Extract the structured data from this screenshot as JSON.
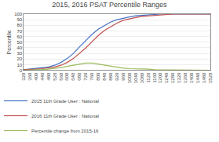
{
  "chart_data": {
    "type": "line",
    "title": "2015, 2016 PSAT Percentile Ranges",
    "y_label": "Percentile",
    "x": [
      320,
      360,
      400,
      440,
      480,
      520,
      560,
      600,
      640,
      680,
      720,
      760,
      800,
      840,
      880,
      920,
      960,
      1000,
      1040,
      1080,
      1120,
      1160,
      1200,
      1240,
      1280,
      1320,
      1360,
      1400,
      1440,
      1480,
      1520
    ],
    "series": [
      {
        "name": "2015 11th Grade User : National",
        "color": "#4472C4",
        "values": [
          1,
          2,
          3,
          4,
          6,
          9,
          14,
          21,
          30,
          42,
          53,
          64,
          73,
          80,
          86,
          90,
          93,
          95,
          97,
          98,
          99,
          99,
          100,
          100,
          100,
          100,
          100,
          100,
          100,
          100,
          100
        ]
      },
      {
        "name": "2016 11th Grade User : National",
        "color": "#C0504D",
        "values": [
          1,
          1,
          2,
          3,
          4,
          6,
          9,
          14,
          21,
          30,
          40,
          51,
          62,
          71,
          78,
          84,
          89,
          92,
          94,
          96,
          97,
          98,
          99,
          99,
          100,
          100,
          100,
          100,
          100,
          100,
          100
        ]
      },
      {
        "name": "Percentile change from 2015-16",
        "color": "#9BBB59",
        "values": [
          0,
          1,
          1,
          1,
          2,
          3,
          5,
          7,
          9,
          12,
          13,
          13,
          11,
          9,
          8,
          6,
          4,
          3,
          3,
          2,
          2,
          1,
          1,
          1,
          0,
          0,
          0,
          0,
          0,
          0,
          0
        ]
      }
    ],
    "xlim": [
      320,
      1520
    ],
    "xticks": [
      320,
      360,
      400,
      440,
      480,
      520,
      560,
      600,
      640,
      680,
      720,
      760,
      800,
      840,
      880,
      920,
      960,
      1000,
      1040,
      1080,
      1120,
      1160,
      1200,
      1240,
      1280,
      1320,
      1360,
      1400,
      1440,
      1480,
      1520
    ],
    "ylim": [
      0,
      100
    ],
    "yticks": [
      0,
      10,
      20,
      30,
      40,
      50,
      60,
      70,
      80,
      90,
      100
    ],
    "grid": "y",
    "legend": "bottom"
  }
}
